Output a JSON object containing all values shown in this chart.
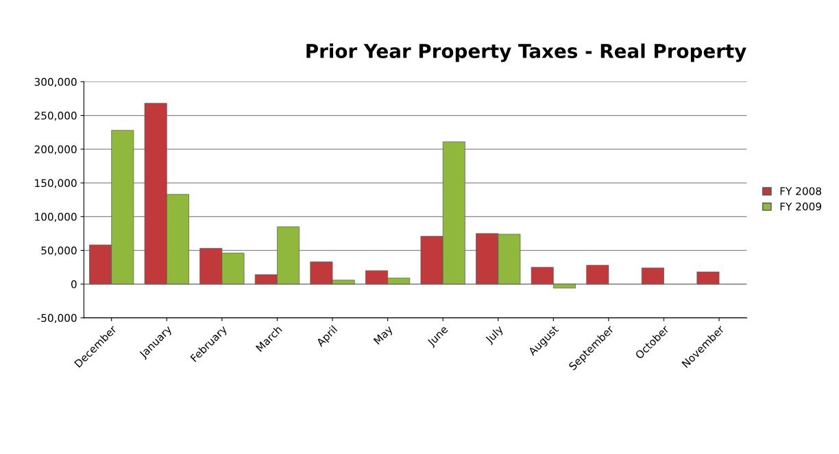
{
  "chart_data": {
    "type": "bar",
    "title": "Prior Year Property Taxes - Real Property",
    "categories": [
      "December",
      "January",
      "February",
      "March",
      "April",
      "May",
      "June",
      "July",
      "August",
      "September",
      "October",
      "November"
    ],
    "series": [
      {
        "name": "FY 2008",
        "color": "#c0393b",
        "values": [
          58000,
          268000,
          53000,
          14000,
          33000,
          20000,
          71000,
          75000,
          25000,
          28000,
          24000,
          18000
        ]
      },
      {
        "name": "FY 2009",
        "color": "#8fb83c",
        "values": [
          228000,
          133000,
          46000,
          85000,
          6000,
          9000,
          211000,
          74000,
          -6000,
          null,
          null,
          null
        ]
      }
    ],
    "ylim": [
      -50000,
      300000
    ],
    "yticks": [
      {
        "value": -50000,
        "label": "-50,000"
      },
      {
        "value": 0,
        "label": "0"
      },
      {
        "value": 50000,
        "label": "50,000"
      },
      {
        "value": 100000,
        "label": "100,000"
      },
      {
        "value": 150000,
        "label": "150,000"
      },
      {
        "value": 200000,
        "label": "200,000"
      },
      {
        "value": 250000,
        "label": "250,000"
      },
      {
        "value": 300000,
        "label": "300,000"
      }
    ],
    "grid": "y",
    "legend": "right"
  }
}
